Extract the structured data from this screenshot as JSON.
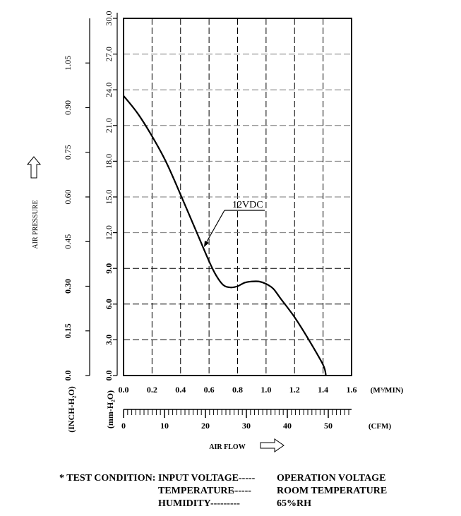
{
  "chart_data": {
    "type": "line",
    "series": [
      {
        "name": "12VDC",
        "x": [
          0.0,
          0.1,
          0.2,
          0.3,
          0.4,
          0.5,
          0.6,
          0.65,
          0.7,
          0.75,
          0.8,
          0.85,
          0.9,
          0.95,
          1.0,
          1.05,
          1.1,
          1.2,
          1.3,
          1.4,
          1.42
        ],
        "y": [
          23.5,
          22.0,
          20.1,
          17.9,
          15.2,
          12.4,
          9.6,
          8.4,
          7.6,
          7.4,
          7.5,
          7.8,
          7.9,
          7.9,
          7.7,
          7.3,
          6.5,
          4.9,
          3.0,
          0.9,
          0.0
        ]
      }
    ],
    "annotation": "12VDC",
    "xlim": [
      0,
      1.6
    ],
    "ylim": [
      0,
      30
    ],
    "x_ticks": [
      "0.0",
      "0.2",
      "0.4",
      "0.6",
      "0.8",
      "1.0",
      "1.2",
      "1.4",
      "1.6"
    ],
    "x_unit": "(M³/MIN)",
    "y_ticks": [
      "0.0",
      "3.0",
      "6.0",
      "9.0",
      "12.0",
      "15.0",
      "18.0",
      "21.0",
      "24.0",
      "27.0",
      "30.0"
    ],
    "y_unit": "(mm-H₂O)",
    "inch_ticks": [
      "0.0",
      "0.15",
      "0.30",
      "0.45",
      "0.60",
      "0.75",
      "0.90",
      "1.05"
    ],
    "inch_unit": "(INCH-H₂O)",
    "cfm_ticks": [
      "0",
      "10",
      "20",
      "30",
      "40",
      "50"
    ],
    "cfm_unit": "(CFM)",
    "xlabel": "AIR FLOW",
    "ylabel": "AIR PRESSURE",
    "grid": true
  },
  "conditions": {
    "prefix": "* TEST CONDITION:",
    "rows": [
      {
        "label": "INPUT VOLTAGE",
        "dashes": "-----",
        "value": "OPERATION VOLTAGE"
      },
      {
        "label": "TEMPERATURE",
        "dashes": "------",
        "value": "ROOM TEMPERATURE"
      },
      {
        "label": "HUMIDITY",
        "dashes": "---------",
        "value": "65%RH"
      }
    ]
  }
}
